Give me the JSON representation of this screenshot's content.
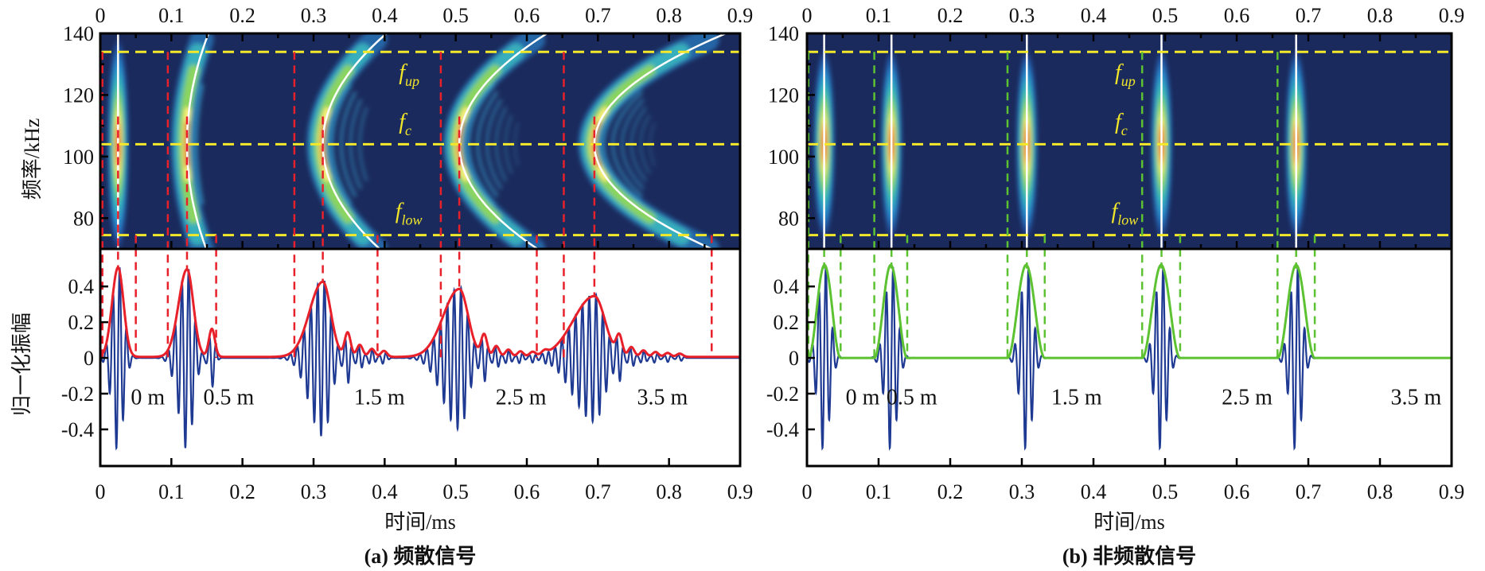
{
  "chart_data": [
    {
      "type": "spectrogram+line",
      "caption": "(a) 频散信号",
      "xlabel": "时间/ms",
      "ylabel_top": "频率/kHz",
      "ylabel_bottom": "归一化振幅",
      "xlim": [
        0,
        0.9
      ],
      "xticks": [
        "0",
        "0.1",
        "0.2",
        "0.3",
        "0.4",
        "0.5",
        "0.6",
        "0.7",
        "0.8",
        "0.9"
      ],
      "freq_ylim": [
        70,
        140
      ],
      "freq_yticks": [
        "140",
        "120",
        "100",
        "80"
      ],
      "amp_ylim": [
        -0.605,
        0.61
      ],
      "amp_yticks": [
        "0.4",
        "0.2",
        "0",
        "-0.2",
        "-0.4"
      ],
      "reference_freqs_khz": {
        "f_up": 134,
        "f_c": 104,
        "f_low": 74.5
      },
      "annotations": [
        {
          "base": "f",
          "sub": "up",
          "t": 0.42,
          "f": 125
        },
        {
          "base": "f",
          "sub": "c",
          "t": 0.42,
          "f": 109
        },
        {
          "base": "f",
          "sub": "low",
          "t": 0.415,
          "f": 80
        }
      ],
      "envelope_color": "#e8202a",
      "window_color": "#e8202a",
      "pulses": [
        {
          "label": "0 m",
          "label_t": 0.043,
          "center_ms": 0.025,
          "window_ms": [
            0.003,
            0.05
          ],
          "envelope_peak": 0.5,
          "dispersion": 0
        },
        {
          "label": "0.5 m",
          "label_t": 0.145,
          "center_ms": 0.122,
          "window_ms": [
            0.095,
            0.163
          ],
          "envelope_peak": 0.49,
          "dispersion": 0.027
        },
        {
          "label": "1.5 m",
          "label_t": 0.357,
          "center_ms": 0.313,
          "window_ms": [
            0.273,
            0.39
          ],
          "envelope_peak": 0.42,
          "dispersion": 0.08
        },
        {
          "label": "2.5 m",
          "label_t": 0.556,
          "center_ms": 0.505,
          "window_ms": [
            0.479,
            0.614
          ],
          "envelope_peak": 0.38,
          "dispersion": 0.11
        },
        {
          "label": "3.5 m",
          "label_t": 0.755,
          "center_ms": 0.695,
          "window_ms": [
            0.652,
            0.86
          ],
          "envelope_peak": 0.34,
          "dispersion": 0.165
        }
      ]
    },
    {
      "type": "spectrogram+line",
      "caption": "(b) 非频散信号",
      "xlabel": "时间/ms",
      "xlim": [
        0,
        0.9
      ],
      "xticks": [
        "0",
        "0.1",
        "0.2",
        "0.3",
        "0.4",
        "0.5",
        "0.6",
        "0.7",
        "0.8",
        "0.9"
      ],
      "freq_ylim": [
        70,
        140
      ],
      "freq_yticks": [
        "140",
        "120",
        "100",
        "80"
      ],
      "amp_ylim": [
        -0.605,
        0.61
      ],
      "amp_yticks": [
        "0.4",
        "0.2",
        "0",
        "-0.2",
        "-0.4"
      ],
      "reference_freqs_khz": {
        "f_up": 134,
        "f_c": 104,
        "f_low": 74.5
      },
      "annotations": [
        {
          "base": "f",
          "sub": "up",
          "t": 0.43,
          "f": 125
        },
        {
          "base": "f",
          "sub": "c",
          "t": 0.43,
          "f": 109
        },
        {
          "base": "f",
          "sub": "low",
          "t": 0.425,
          "f": 80
        }
      ],
      "envelope_color": "#5dc232",
      "window_color": "#5dc232",
      "pulses": [
        {
          "label": "0 m",
          "label_t": 0.054,
          "center_ms": 0.024,
          "window_ms": [
            0.002,
            0.047
          ],
          "envelope_peak": 0.5,
          "dispersion": 0
        },
        {
          "label": "0.5 m",
          "label_t": 0.111,
          "center_ms": 0.118,
          "window_ms": [
            0.094,
            0.14
          ],
          "envelope_peak": 0.5,
          "dispersion": 0
        },
        {
          "label": "1.5 m",
          "label_t": 0.341,
          "center_ms": 0.307,
          "window_ms": [
            0.28,
            0.332
          ],
          "envelope_peak": 0.5,
          "dispersion": 0
        },
        {
          "label": "2.5 m",
          "label_t": 0.579,
          "center_ms": 0.495,
          "window_ms": [
            0.468,
            0.521
          ],
          "envelope_peak": 0.5,
          "dispersion": 0
        },
        {
          "label": "3.5 m",
          "label_t": 0.815,
          "center_ms": 0.683,
          "window_ms": [
            0.657,
            0.709
          ],
          "envelope_peak": 0.5,
          "dispersion": 0
        }
      ]
    }
  ],
  "colors": {
    "spectrogram_bg": "#1b2a5c",
    "waveform": "#1f3a93",
    "ref_line": "#f3e829",
    "ridge": "#ffffff"
  }
}
